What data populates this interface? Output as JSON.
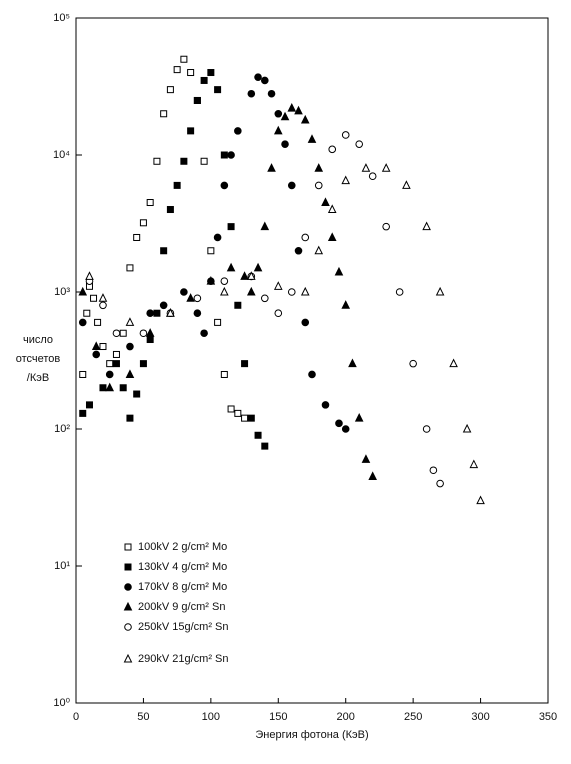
{
  "chart_data": {
    "type": "scatter",
    "xlabel": "Энергия фотона (КэВ)",
    "ylabel": [
      "число",
      "отсчетов",
      "/КэВ"
    ],
    "xlim": [
      0,
      350
    ],
    "xticks": [
      0,
      50,
      100,
      150,
      200,
      250,
      300,
      350
    ],
    "ylim": [
      1,
      100000
    ],
    "ylog": true,
    "yticks": [
      {
        "value": 1,
        "label": "10⁰"
      },
      {
        "value": 10,
        "label": "10¹"
      },
      {
        "value": 100,
        "label": "10²"
      },
      {
        "value": 1000,
        "label": "10³"
      },
      {
        "value": 10000,
        "label": "10⁴"
      },
      {
        "value": 100000,
        "label": "10⁵"
      }
    ],
    "color": "#000000",
    "series": [
      {
        "name": "100kV  2 g/cm² Mo",
        "marker": "square-open",
        "x": [
          5,
          8,
          10,
          13,
          16,
          20,
          25,
          30,
          35,
          40,
          45,
          50,
          55,
          60,
          65,
          70,
          75,
          80,
          85,
          90,
          95,
          100,
          105,
          110,
          115,
          120,
          125
        ],
        "values": [
          250,
          700,
          1100,
          900,
          600,
          400,
          300,
          350,
          500,
          1500,
          2500,
          3200,
          4500,
          9000,
          20000,
          30000,
          42000,
          50000,
          40000,
          25000,
          9000,
          2000,
          600,
          250,
          140,
          130,
          120
        ]
      },
      {
        "name": "130kV  4 g/cm² Mo",
        "marker": "square-filled",
        "x": [
          5,
          10,
          20,
          30,
          35,
          40,
          45,
          50,
          55,
          60,
          65,
          70,
          75,
          80,
          85,
          90,
          95,
          100,
          105,
          110,
          115,
          120,
          125,
          130,
          135,
          140
        ],
        "values": [
          130,
          150,
          200,
          300,
          200,
          120,
          180,
          300,
          450,
          700,
          2000,
          4000,
          6000,
          9000,
          15000,
          25000,
          35000,
          40000,
          30000,
          10000,
          3000,
          800,
          300,
          120,
          90,
          75
        ]
      },
      {
        "name": "170kV  8 g/cm² Mo",
        "marker": "circle-filled",
        "x": [
          5,
          15,
          25,
          40,
          55,
          65,
          80,
          90,
          95,
          100,
          105,
          110,
          115,
          120,
          130,
          135,
          140,
          145,
          150,
          155,
          160,
          165,
          170,
          175,
          185,
          195,
          200
        ],
        "values": [
          600,
          350,
          250,
          400,
          700,
          800,
          1000,
          700,
          500,
          1200,
          2500,
          6000,
          10000,
          15000,
          28000,
          37000,
          35000,
          28000,
          20000,
          12000,
          6000,
          2000,
          600,
          250,
          150,
          110,
          100
        ]
      },
      {
        "name": "200kV  9 g/cm² Sn",
        "marker": "triangle-filled",
        "x": [
          5,
          15,
          25,
          40,
          55,
          70,
          85,
          100,
          115,
          125,
          130,
          135,
          140,
          145,
          150,
          155,
          160,
          165,
          170,
          175,
          180,
          185,
          190,
          195,
          200,
          205,
          210,
          215,
          220
        ],
        "values": [
          1000,
          400,
          200,
          250,
          500,
          700,
          900,
          1200,
          1500,
          1300,
          1000,
          1500,
          3000,
          8000,
          15000,
          19000,
          22000,
          21000,
          18000,
          13000,
          8000,
          4500,
          2500,
          1400,
          800,
          300,
          120,
          60,
          45
        ]
      },
      {
        "name": "250kV  15g/cm² Sn",
        "marker": "circle-open",
        "x": [
          10,
          20,
          30,
          50,
          70,
          90,
          110,
          130,
          140,
          150,
          160,
          170,
          180,
          190,
          200,
          210,
          220,
          230,
          240,
          250,
          260,
          265,
          270
        ],
        "values": [
          1200,
          800,
          500,
          500,
          700,
          900,
          1200,
          1300,
          900,
          700,
          1000,
          2500,
          6000,
          11000,
          14000,
          12000,
          7000,
          3000,
          1000,
          300,
          100,
          50,
          40
        ]
      },
      {
        "name": "290kV  21g/cm² Sn",
        "marker": "triangle-open",
        "x": [
          10,
          20,
          40,
          70,
          110,
          130,
          150,
          170,
          180,
          190,
          200,
          215,
          230,
          245,
          260,
          270,
          280,
          290,
          295,
          300
        ],
        "values": [
          1300,
          900,
          600,
          700,
          1000,
          1300,
          1100,
          1000,
          2000,
          4000,
          6500,
          8000,
          8000,
          6000,
          3000,
          1000,
          300,
          100,
          55,
          30
        ]
      }
    ]
  }
}
